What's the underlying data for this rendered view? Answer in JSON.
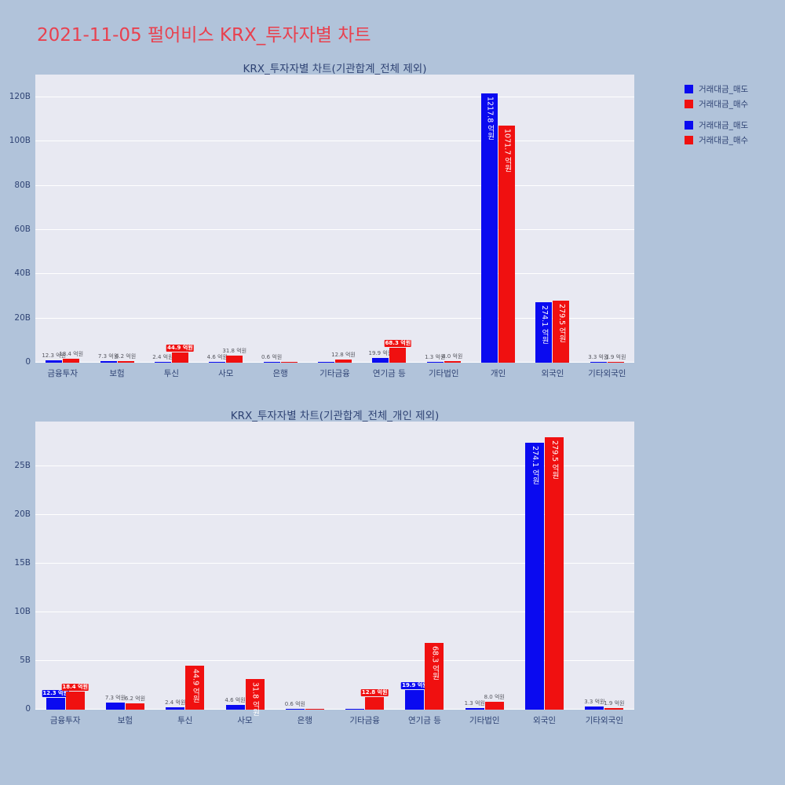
{
  "page_title": "2021-11-05 펄어비스 KRX_투자자별 차트",
  "colors": {
    "background": "#b1c3da",
    "plot_background": "#e8e9f2",
    "title_red": "#e8414f",
    "axis_text": "#2f4374",
    "sell_blue": "#0a0af0",
    "buy_red": "#f01010"
  },
  "legend": [
    {
      "label": "거래대금_매도",
      "color": "#0a0af0"
    },
    {
      "label": "거래대금_매수",
      "color": "#f01010"
    },
    {
      "label": "거래대금_매도",
      "color": "#0a0af0"
    },
    {
      "label": "거래대금_매수",
      "color": "#f01010"
    }
  ],
  "chart_data": [
    {
      "type": "bar",
      "title": "KRX_투자자별 차트(기관합계_전체 제외)",
      "unit": "억원",
      "ylabel": "",
      "y_ticks": [
        [
          0,
          "0"
        ],
        [
          20,
          "20B"
        ],
        [
          40,
          "40B"
        ],
        [
          60,
          "60B"
        ],
        [
          80,
          "80B"
        ],
        [
          100,
          "100B"
        ],
        [
          120,
          "120B"
        ]
      ],
      "ylim_b": [
        0,
        130
      ],
      "categories": [
        "금융투자",
        "보험",
        "투신",
        "사모",
        "은행",
        "기타금융",
        "연기금 등",
        "기타법인",
        "개인",
        "외국인",
        "기타외국인"
      ],
      "series": [
        {
          "key": "sell",
          "name": "거래대금_매도",
          "color": "#0a0af0",
          "values_eokwon": [
            12.3,
            7.3,
            2.4,
            4.6,
            0.6,
            null,
            19.9,
            1.3,
            1217.8,
            274.1,
            3.3
          ],
          "label_styles": [
            "plain",
            "plain",
            "plain",
            "plain",
            "plain",
            "none",
            "plain",
            "plain",
            "inside",
            "inside",
            "plain"
          ]
        },
        {
          "key": "buy",
          "name": "거래대금_매수",
          "color": "#f01010",
          "values_eokwon": [
            18.4,
            6.2,
            44.9,
            31.8,
            null,
            12.8,
            68.3,
            8.0,
            1071.7,
            279.5,
            1.9
          ],
          "label_styles": [
            "plain",
            "plain",
            "badge",
            "plain",
            "none",
            "plain",
            "badge",
            "plain",
            "inside",
            "inside",
            "plain"
          ]
        }
      ]
    },
    {
      "type": "bar",
      "title": "KRX_투자자별 차트(기관합계_전체_개인 제외)",
      "unit": "억원",
      "ylabel": "",
      "y_ticks": [
        [
          0,
          "0"
        ],
        [
          5,
          "5B"
        ],
        [
          10,
          "10B"
        ],
        [
          15,
          "15B"
        ],
        [
          20,
          "20B"
        ],
        [
          25,
          "25B"
        ]
      ],
      "ylim_b": [
        0,
        29
      ],
      "categories": [
        "금융투자",
        "보험",
        "투신",
        "사모",
        "은행",
        "기타금융",
        "연기금 등",
        "기타법인",
        "외국인",
        "기타외국인"
      ],
      "series": [
        {
          "key": "sell",
          "name": "거래대금_매도",
          "color": "#0a0af0",
          "values_eokwon": [
            12.3,
            7.3,
            2.4,
            4.6,
            0.6,
            null,
            19.9,
            1.3,
            274.1,
            3.3
          ],
          "label_styles": [
            "badge",
            "plain",
            "plain",
            "plain",
            "plain",
            "none",
            "badge",
            "plain",
            "inside",
            "plain"
          ]
        },
        {
          "key": "buy",
          "name": "거래대금_매수",
          "color": "#f01010",
          "values_eokwon": [
            18.4,
            6.2,
            44.9,
            31.8,
            null,
            12.8,
            68.3,
            8.0,
            279.5,
            1.9
          ],
          "label_styles": [
            "badge",
            "plain",
            "inside",
            "inside",
            "none",
            "badge",
            "inside",
            "plain",
            "inside",
            "plain"
          ]
        }
      ]
    }
  ]
}
